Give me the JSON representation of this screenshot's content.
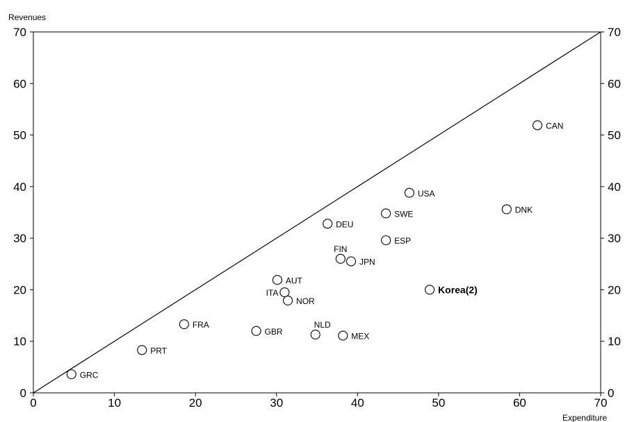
{
  "chart_data": {
    "type": "scatter",
    "ylabel": "Revenues",
    "xlabel": "Expenditure",
    "xlim": [
      0,
      70
    ],
    "ylim": [
      0,
      70
    ],
    "x_ticks": [
      0,
      10,
      20,
      30,
      40,
      50,
      60,
      70
    ],
    "y_ticks": [
      0,
      10,
      20,
      30,
      40,
      50,
      60,
      70
    ],
    "grid": false,
    "reference_line": {
      "from": [
        0,
        0
      ],
      "to": [
        70,
        70
      ]
    },
    "points": [
      {
        "label": "GRC",
        "x": 4.7,
        "y": 3.6
      },
      {
        "label": "PRT",
        "x": 13.4,
        "y": 8.3
      },
      {
        "label": "FRA",
        "x": 18.6,
        "y": 13.3
      },
      {
        "label": "GBR",
        "x": 27.5,
        "y": 12.0
      },
      {
        "label": "AUT",
        "x": 30.1,
        "y": 21.9
      },
      {
        "label": "ITA",
        "x": 31.0,
        "y": 19.5
      },
      {
        "label": "NOR",
        "x": 31.4,
        "y": 17.9
      },
      {
        "label": "NLD",
        "x": 34.8,
        "y": 11.3
      },
      {
        "label": "DEU",
        "x": 36.3,
        "y": 32.8
      },
      {
        "label": "FIN",
        "x": 37.9,
        "y": 26.0
      },
      {
        "label": "JPN",
        "x": 39.2,
        "y": 25.5
      },
      {
        "label": "MEX",
        "x": 38.2,
        "y": 11.1
      },
      {
        "label": "SWE",
        "x": 43.5,
        "y": 34.8
      },
      {
        "label": "ESP",
        "x": 43.5,
        "y": 29.6
      },
      {
        "label": "USA",
        "x": 46.4,
        "y": 38.8
      },
      {
        "label": "Korea(2)",
        "x": 48.9,
        "y": 20.0,
        "bold": true
      },
      {
        "label": "DNK",
        "x": 58.4,
        "y": 35.6
      },
      {
        "label": "CAN",
        "x": 62.2,
        "y": 51.9
      }
    ]
  }
}
